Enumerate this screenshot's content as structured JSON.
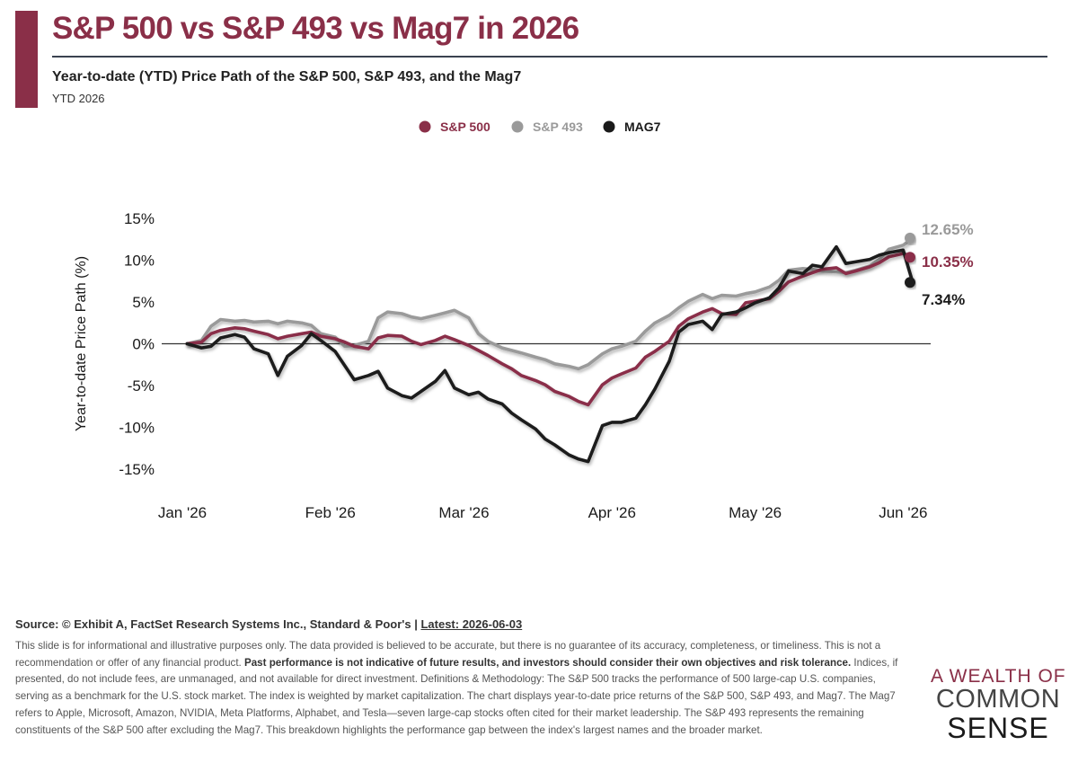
{
  "header": {
    "title": "S&P 500 vs S&P 493 vs Mag7 in 2026",
    "subtitle": "Year-to-date (YTD) Price Path of the S&P 500, S&P 493, and the Mag7",
    "period": "YTD 2026"
  },
  "colors": {
    "accent": "#8a2f48",
    "sp500": "#8a2f48",
    "sp493": "#9a9a9a",
    "mag7": "#1a1a1a"
  },
  "chart_data": {
    "type": "line",
    "title": "",
    "xlabel": "",
    "ylabel": "Year-to-date Price Path (%)",
    "xlim": [
      "2026-01-01",
      "2026-06-03"
    ],
    "ylim": [
      -15,
      15
    ],
    "yticks": [
      15,
      10,
      5,
      0,
      -5,
      -10,
      -15
    ],
    "ytick_labels": [
      "15%",
      "10%",
      "5%",
      "0%",
      "-5%",
      "-10%",
      "-15%"
    ],
    "xticks": [
      "2026-01-01",
      "2026-02-01",
      "2026-03-01",
      "2026-04-01",
      "2026-05-01",
      "2026-06-01"
    ],
    "xtick_labels": [
      "Jan '26",
      "Feb '26",
      "Mar '26",
      "Apr '26",
      "May '26",
      "Jun '26"
    ],
    "legend_position": "top-center",
    "grid": false,
    "zero_line": true,
    "x": [
      "2026-01-02",
      "2026-01-05",
      "2026-01-07",
      "2026-01-09",
      "2026-01-12",
      "2026-01-14",
      "2026-01-16",
      "2026-01-19",
      "2026-01-21",
      "2026-01-23",
      "2026-01-26",
      "2026-01-28",
      "2026-01-30",
      "2026-02-02",
      "2026-02-04",
      "2026-02-06",
      "2026-02-09",
      "2026-02-11",
      "2026-02-13",
      "2026-02-16",
      "2026-02-18",
      "2026-02-20",
      "2026-02-23",
      "2026-02-25",
      "2026-02-27",
      "2026-03-02",
      "2026-03-04",
      "2026-03-06",
      "2026-03-09",
      "2026-03-11",
      "2026-03-13",
      "2026-03-16",
      "2026-03-18",
      "2026-03-20",
      "2026-03-23",
      "2026-03-25",
      "2026-03-27",
      "2026-03-30",
      "2026-04-01",
      "2026-04-03",
      "2026-04-06",
      "2026-04-08",
      "2026-04-10",
      "2026-04-13",
      "2026-04-15",
      "2026-04-17",
      "2026-04-20",
      "2026-04-22",
      "2026-04-24",
      "2026-04-27",
      "2026-04-29",
      "2026-05-01",
      "2026-05-04",
      "2026-05-06",
      "2026-05-08",
      "2026-05-11",
      "2026-05-13",
      "2026-05-15",
      "2026-05-18",
      "2026-05-20",
      "2026-05-22",
      "2026-05-25",
      "2026-05-27",
      "2026-05-29",
      "2026-06-01",
      "2026-06-03"
    ],
    "series": [
      {
        "name": "S&P 500",
        "color": "#8a2f48",
        "end_label": "10.35%",
        "values": [
          0.0,
          0.2,
          1.2,
          1.6,
          1.9,
          1.8,
          1.5,
          1.1,
          0.6,
          0.9,
          1.2,
          1.4,
          0.9,
          0.6,
          0.2,
          -0.3,
          -0.6,
          0.7,
          1.0,
          0.9,
          0.3,
          -0.1,
          0.4,
          0.9,
          0.5,
          -0.2,
          -0.8,
          -1.4,
          -2.4,
          -3.0,
          -3.8,
          -4.4,
          -4.9,
          -5.7,
          -6.3,
          -6.9,
          -7.3,
          -4.9,
          -4.1,
          -3.6,
          -2.9,
          -1.6,
          -0.9,
          0.3,
          2.1,
          3.0,
          3.8,
          4.2,
          3.6,
          3.5,
          4.9,
          5.1,
          5.4,
          6.3,
          7.4,
          8.1,
          8.5,
          8.9,
          9.1,
          8.4,
          8.7,
          9.2,
          9.7,
          10.4,
          10.8,
          10.35
        ]
      },
      {
        "name": "S&P 493",
        "color": "#9a9a9a",
        "end_label": "12.65%",
        "values": [
          0.0,
          0.4,
          2.1,
          2.9,
          2.7,
          2.8,
          2.6,
          2.7,
          2.4,
          2.7,
          2.5,
          2.2,
          1.2,
          0.8,
          -0.3,
          -0.2,
          0.3,
          3.1,
          3.8,
          3.6,
          3.2,
          3.0,
          3.4,
          3.7,
          4.0,
          3.1,
          1.2,
          0.3,
          -0.5,
          -0.8,
          -1.1,
          -1.6,
          -1.9,
          -2.4,
          -2.7,
          -3.0,
          -2.5,
          -1.2,
          -0.6,
          -0.3,
          0.3,
          1.5,
          2.5,
          3.4,
          4.3,
          5.1,
          5.9,
          5.4,
          5.8,
          5.7,
          6.0,
          6.2,
          6.8,
          7.6,
          8.8,
          9.0,
          8.9,
          8.7,
          8.6,
          8.5,
          8.8,
          9.3,
          10.1,
          11.3,
          11.8,
          12.65
        ]
      },
      {
        "name": "MAG7",
        "color": "#1a1a1a",
        "end_label": "7.34%",
        "values": [
          0.0,
          -0.5,
          -0.3,
          0.7,
          1.1,
          0.8,
          -0.6,
          -1.2,
          -3.8,
          -1.5,
          -0.2,
          1.2,
          0.4,
          -0.9,
          -2.6,
          -4.3,
          -3.8,
          -3.3,
          -5.3,
          -6.2,
          -6.5,
          -5.7,
          -4.5,
          -3.2,
          -5.3,
          -6.1,
          -5.8,
          -6.6,
          -7.2,
          -8.3,
          -9.1,
          -10.2,
          -11.4,
          -12.1,
          -13.3,
          -13.8,
          -14.1,
          -9.8,
          -9.4,
          -9.4,
          -8.9,
          -7.3,
          -5.4,
          -2.1,
          1.4,
          2.3,
          2.7,
          1.7,
          3.5,
          3.8,
          4.3,
          4.9,
          5.5,
          6.7,
          8.7,
          8.4,
          9.4,
          9.2,
          11.6,
          9.6,
          9.8,
          10.1,
          10.6,
          10.9,
          11.2,
          7.34
        ]
      }
    ]
  },
  "footer": {
    "source_text": "Source: © Exhibit A, FactSet Research Systems Inc., Standard & Poor's | ",
    "latest_text": "Latest: 2026-06-03",
    "disclaimer_1": "This slide is for informational and illustrative purposes only. The data provided is believed to be accurate, but there is no guarantee of its accuracy, completeness, or timeliness. This is not a recommendation or offer of any financial product. ",
    "disclaimer_bold": "Past performance is not indicative of future results, and investors should consider their own objectives and risk tolerance.",
    "disclaimer_2": " Indices, if presented, do not include fees, are unmanaged, and not available for direct investment. Definitions & Methodology: The S&P 500 tracks the performance of 500 large-cap U.S. companies, serving as a benchmark for the U.S. stock market. The index is weighted by market capitalization. The chart displays year-to-date price returns of the S&P 500, S&P 493, and Mag7. The Mag7 refers to Apple, Microsoft, Amazon, NVIDIA, Meta Platforms, Alphabet, and Tesla—seven large-cap stocks often cited for their market leadership. The S&P 493 represents the remaining constituents of the S&P 500 after excluding the Mag7. This breakdown highlights the performance gap between the index's largest names and the broader market."
  },
  "logo": {
    "line1": "A WEALTH OF",
    "line2": "COMMON",
    "line3": "SENSE"
  }
}
